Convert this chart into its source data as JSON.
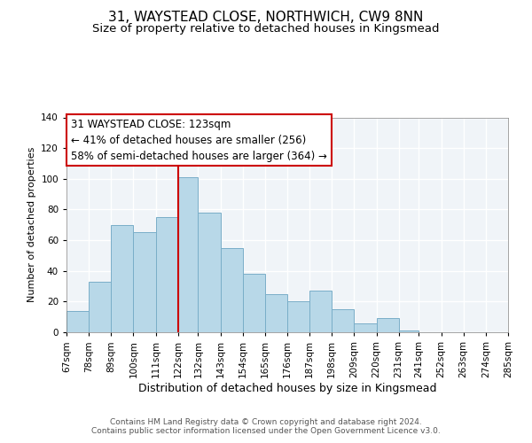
{
  "title": "31, WAYSTEAD CLOSE, NORTHWICH, CW9 8NN",
  "subtitle": "Size of property relative to detached houses in Kingsmead",
  "xlabel": "Distribution of detached houses by size in Kingsmead",
  "ylabel": "Number of detached properties",
  "bar_heights": [
    14,
    33,
    70,
    65,
    75,
    101,
    78,
    55,
    38,
    25,
    20,
    27,
    15,
    6,
    9,
    1,
    0,
    0,
    0,
    0
  ],
  "bin_edges": [
    67,
    78,
    89,
    100,
    111,
    122,
    132,
    143,
    154,
    165,
    176,
    187,
    198,
    209,
    220,
    231,
    241,
    252,
    263,
    274,
    285
  ],
  "x_tick_labels": [
    "67sqm",
    "78sqm",
    "89sqm",
    "100sqm",
    "111sqm",
    "122sqm",
    "132sqm",
    "143sqm",
    "154sqm",
    "165sqm",
    "176sqm",
    "187sqm",
    "198sqm",
    "209sqm",
    "220sqm",
    "231sqm",
    "241sqm",
    "252sqm",
    "263sqm",
    "274sqm",
    "285sqm"
  ],
  "bar_color": "#b8d8e8",
  "bar_edgecolor": "#7aaec8",
  "vline_x": 122,
  "vline_color": "#cc0000",
  "ylim": [
    0,
    140
  ],
  "yticks": [
    0,
    20,
    40,
    60,
    80,
    100,
    120,
    140
  ],
  "annotation_title": "31 WAYSTEAD CLOSE: 123sqm",
  "annotation_line1": "← 41% of detached houses are smaller (256)",
  "annotation_line2": "58% of semi-detached houses are larger (364) →",
  "footer_line1": "Contains HM Land Registry data © Crown copyright and database right 2024.",
  "footer_line2": "Contains public sector information licensed under the Open Government Licence v3.0.",
  "title_fontsize": 11,
  "subtitle_fontsize": 9.5,
  "xlabel_fontsize": 9,
  "ylabel_fontsize": 8,
  "tick_fontsize": 7.5,
  "annotation_fontsize": 8.5,
  "footer_fontsize": 6.5
}
